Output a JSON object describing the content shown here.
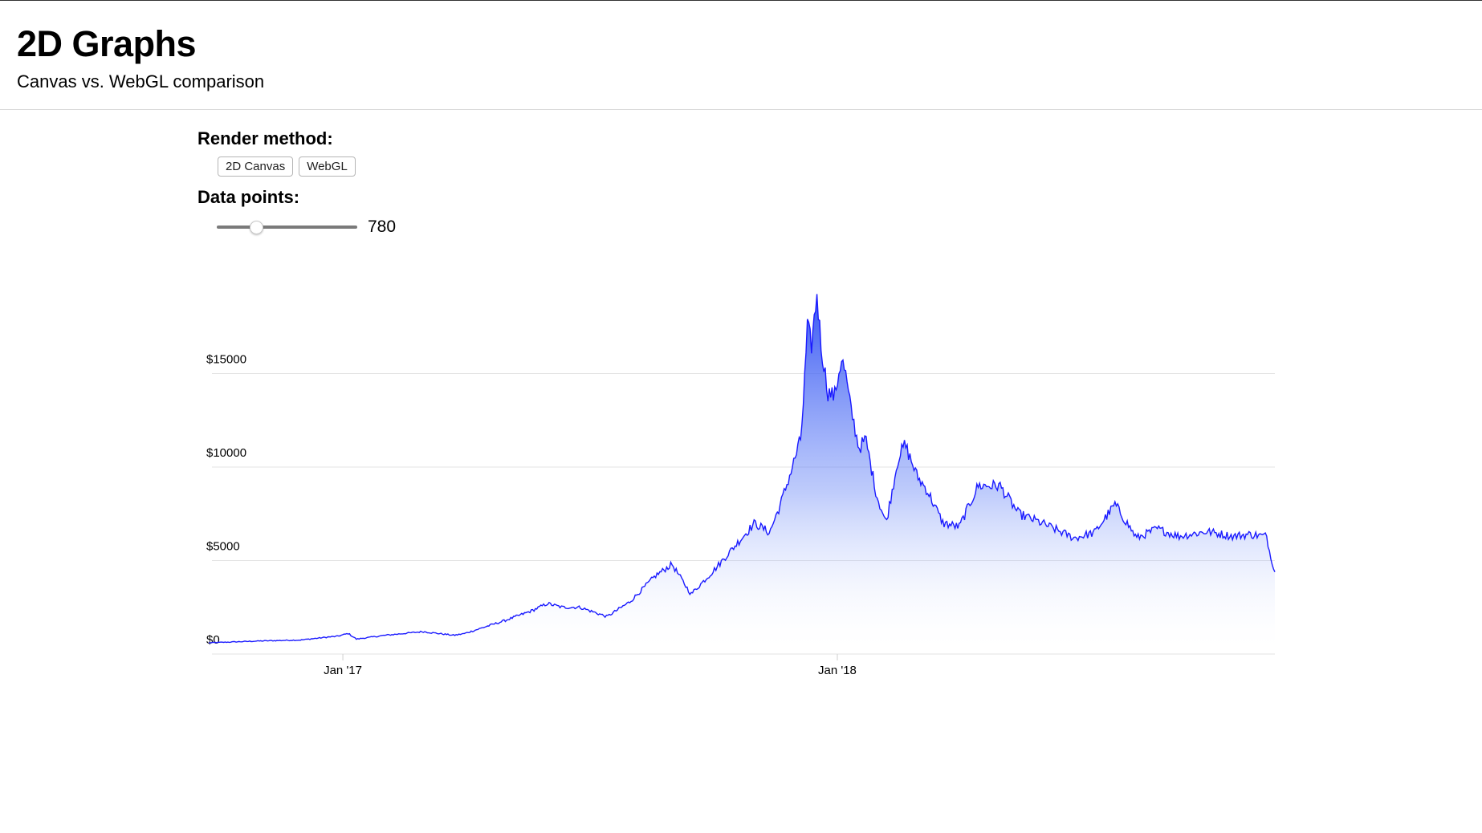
{
  "header": {
    "title": "2D Graphs",
    "subtitle": "Canvas vs. WebGL comparison"
  },
  "controls": {
    "render_label": "Render method:",
    "buttons": [
      "2D Canvas",
      "WebGL"
    ],
    "points_label": "Data points:",
    "slider": {
      "min": 0,
      "max": 1,
      "fraction": 0.28,
      "value": "780"
    }
  },
  "colors": {
    "line": "#1a1aff",
    "fill_top": "#2b4cf2",
    "grid": "#e3e3e3"
  },
  "chart_data": {
    "type": "area",
    "title": "",
    "xlabel": "",
    "ylabel": "",
    "ylim": [
      0,
      20000
    ],
    "y_ticks": [
      {
        "value": 0,
        "label": "$0"
      },
      {
        "value": 5000,
        "label": "$5000"
      },
      {
        "value": 10000,
        "label": "$10000"
      },
      {
        "value": 15000,
        "label": "$15000"
      }
    ],
    "x_ticks": [
      {
        "value": "2017-01-01",
        "label": "Jan '17"
      },
      {
        "value": "2018-01-01",
        "label": "Jan '18"
      }
    ],
    "grid": true,
    "series": [
      {
        "x": [
          "2016-09-24",
          "2016-11-01",
          "2016-12-01",
          "2016-12-20",
          "2016-12-28",
          "2017-01-05",
          "2017-01-11",
          "2017-02-01",
          "2017-03-01",
          "2017-03-24",
          "2017-04-01",
          "2017-05-01",
          "2017-05-20",
          "2017-06-01",
          "2017-06-12",
          "2017-06-25",
          "2017-07-15",
          "2017-08-01",
          "2017-08-20",
          "2017-09-01",
          "2017-09-15",
          "2017-10-01",
          "2017-10-20",
          "2017-11-01",
          "2017-11-12",
          "2017-11-20",
          "2017-11-28",
          "2017-12-05",
          "2017-12-07",
          "2017-12-10",
          "2017-12-13",
          "2017-12-17",
          "2017-12-20",
          "2017-12-22",
          "2017-12-25",
          "2017-12-30",
          "2018-01-04",
          "2018-01-07",
          "2018-01-10",
          "2018-01-17",
          "2018-01-22",
          "2018-01-30",
          "2018-02-06",
          "2018-02-15",
          "2018-02-20",
          "2018-03-01",
          "2018-03-08",
          "2018-03-20",
          "2018-04-01",
          "2018-04-15",
          "2018-05-01",
          "2018-05-15",
          "2018-06-01",
          "2018-06-25",
          "2018-07-10",
          "2018-07-25",
          "2018-08-10",
          "2018-08-25",
          "2018-09-10",
          "2018-10-01",
          "2018-10-20",
          "2018-11-01",
          "2018-11-14",
          "2018-11-16",
          "2018-11-20"
        ],
        "y": [
          600,
          700,
          750,
          900,
          950,
          1100,
          800,
          1000,
          1200,
          1000,
          1100,
          1800,
          2300,
          2700,
          2500,
          2500,
          2000,
          2800,
          4200,
          4800,
          3200,
          4400,
          6000,
          7000,
          6500,
          8000,
          9800,
          11500,
          13500,
          17500,
          16500,
          19300,
          16500,
          15500,
          14000,
          13800,
          15800,
          15000,
          13500,
          11000,
          11500,
          8500,
          7000,
          10500,
          11200,
          9500,
          8800,
          7000,
          6800,
          9000,
          9000,
          7500,
          7000,
          6200,
          6500,
          8000,
          6200,
          6700,
          6300,
          6550,
          6300,
          6400,
          6300,
          5500,
          4400
        ]
      }
    ]
  }
}
